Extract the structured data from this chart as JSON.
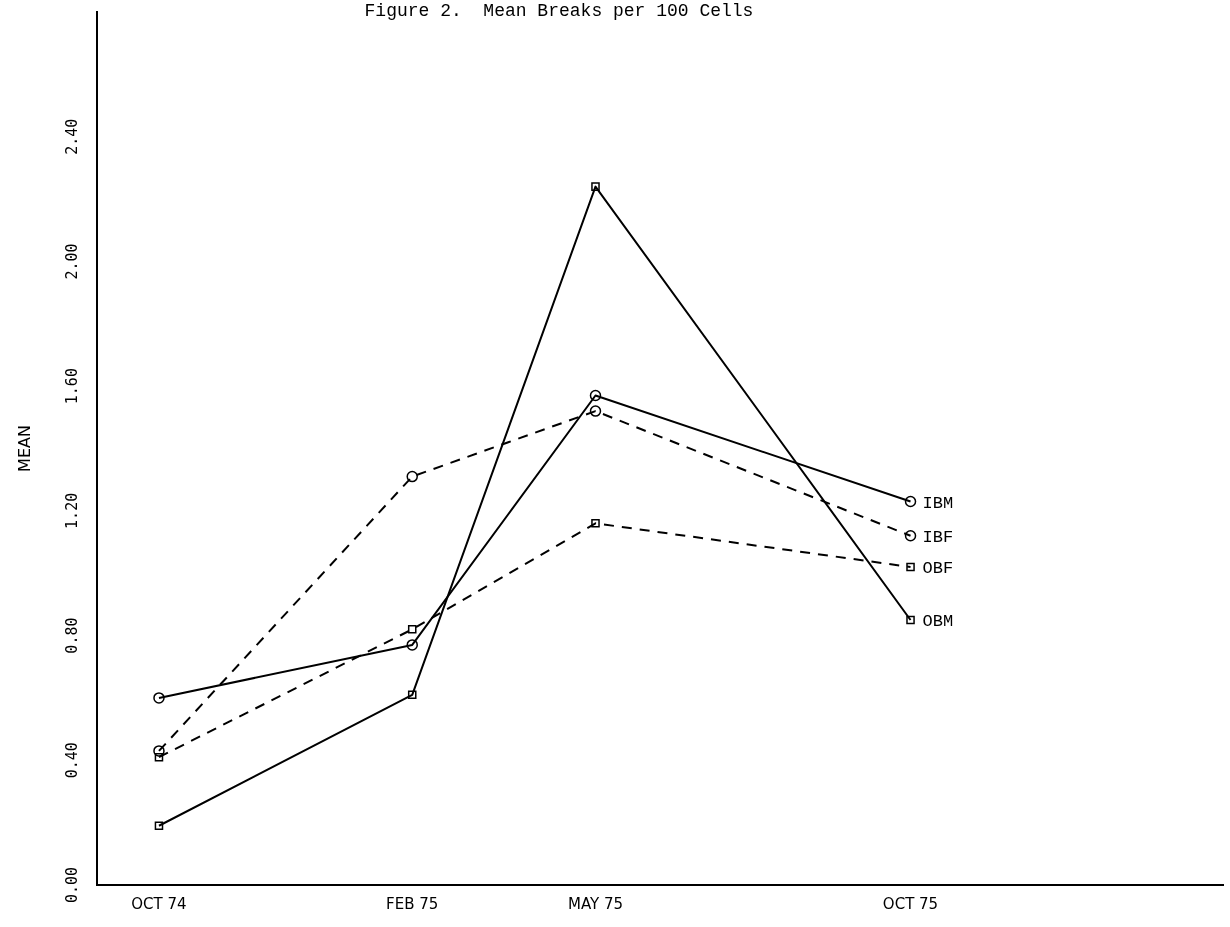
{
  "chart_data": {
    "type": "line",
    "title": "Figure 2.  Mean Breaks per 100 Cells",
    "ylabel": "MEAN",
    "x": [
      "1974-10",
      "1975-02",
      "1975-05",
      "1975-10"
    ],
    "series": [
      {
        "name": "IBM",
        "color": "#000000",
        "marker": "circle",
        "line_style": "solid",
        "values": [
          0.6,
          0.77,
          1.57,
          1.23
        ]
      },
      {
        "name": "IBF",
        "color": "#000000",
        "marker": "circle",
        "line_style": "dashed",
        "values": [
          0.43,
          1.31,
          1.52,
          1.12
        ]
      },
      {
        "name": "OBF",
        "color": "#000000",
        "marker": "square",
        "line_style": "dashed",
        "values": [
          0.41,
          0.82,
          1.16,
          1.02
        ]
      },
      {
        "name": "OBM",
        "color": "#000000",
        "marker": "square",
        "line_style": "solid",
        "values": [
          0.19,
          0.61,
          2.24,
          0.85
        ]
      }
    ],
    "xlim": [
      "1974-09",
      "1976-03"
    ],
    "xticks": [
      {
        "value": "1974-10",
        "label": "OCT 74"
      },
      {
        "value": "1975-02",
        "label": "FEB 75"
      },
      {
        "value": "1975-05",
        "label": "MAY 75"
      },
      {
        "value": "1975-10",
        "label": "OCT 75"
      }
    ],
    "ylim": [
      0,
      2.8
    ],
    "yticks": [
      {
        "value": 0,
        "label": "0.00"
      },
      {
        "value": 0.4,
        "label": "0.40"
      },
      {
        "value": 0.8,
        "label": "0.80"
      },
      {
        "value": 1.2,
        "label": "1.20"
      },
      {
        "value": 1.6,
        "label": "1.60"
      },
      {
        "value": 2.0,
        "label": "2.00"
      },
      {
        "value": 2.4,
        "label": "2.40"
      }
    ],
    "grid": false,
    "legend": "right"
  }
}
